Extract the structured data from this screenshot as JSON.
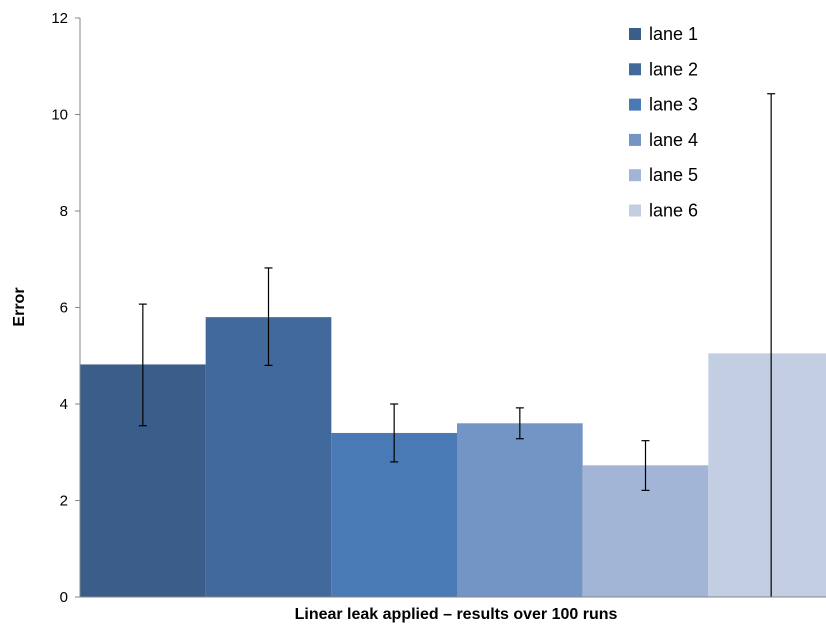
{
  "chart_data": {
    "type": "bar",
    "title": "",
    "xlabel": "Linear leak applied – results over 100 runs",
    "ylabel": "Error",
    "ylim": [
      0,
      12
    ],
    "yticks": [
      0,
      2,
      4,
      6,
      8,
      10,
      12
    ],
    "grid": false,
    "legend_position": "top-right",
    "series": [
      {
        "name": "lane 1",
        "value": 4.82,
        "error_low": 3.55,
        "error_high": 6.07,
        "color": "#3a5d89"
      },
      {
        "name": "lane 2",
        "value": 5.8,
        "error_low": 4.8,
        "error_high": 6.82,
        "color": "#41699c"
      },
      {
        "name": "lane 3",
        "value": 3.4,
        "error_low": 2.8,
        "error_high": 4.0,
        "color": "#4a7ab6"
      },
      {
        "name": "lane 4",
        "value": 3.6,
        "error_low": 3.28,
        "error_high": 3.92,
        "color": "#7295c6"
      },
      {
        "name": "lane 5",
        "value": 2.73,
        "error_low": 2.21,
        "error_high": 3.24,
        "color": "#a2b5d6"
      },
      {
        "name": "lane 6",
        "value": 5.05,
        "error_low": 0,
        "error_high": 10.43,
        "color": "#c3cee3"
      }
    ]
  }
}
